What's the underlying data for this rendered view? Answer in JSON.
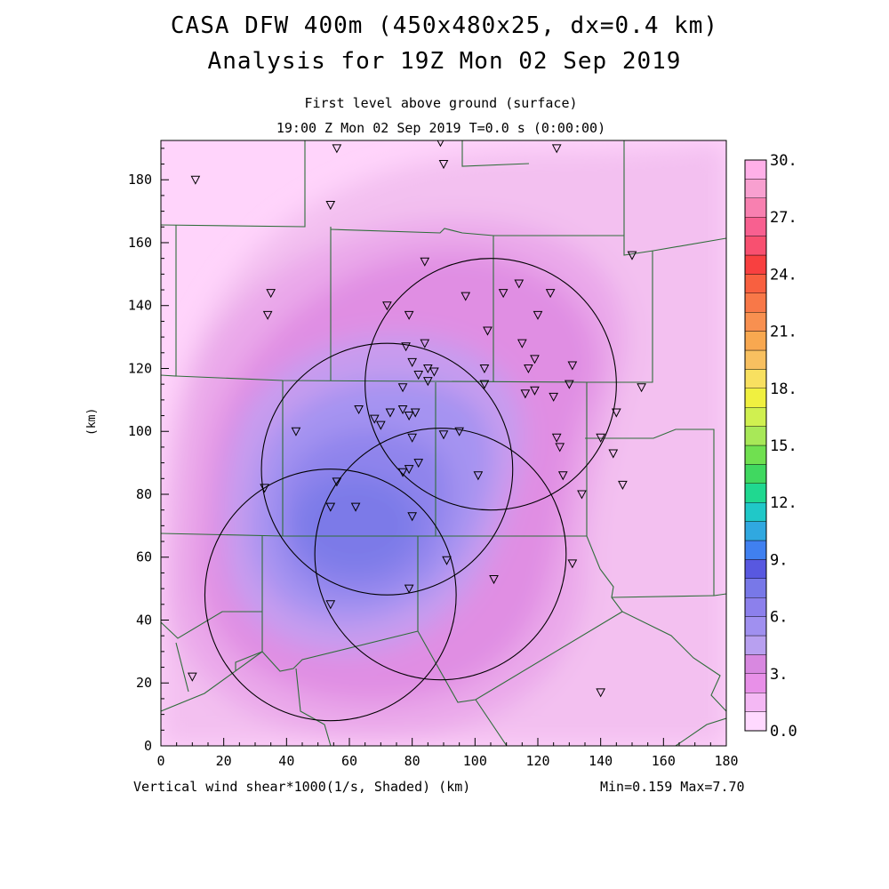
{
  "title_line1": "CASA DFW 400m (450x480x25, dx=0.4 km)",
  "title_line2": "Analysis for 19Z Mon 02 Sep 2019",
  "subtitle_line1": "First level above ground (surface)",
  "subtitle_line2": "19:00 Z Mon 02 Sep 2019    T=0.0 s (0:00:00)",
  "footer_left": "Vertical wind shear*1000(1/s, Shaded)  (km)",
  "footer_right": "Min=0.159 Max=7.70",
  "axis_unit_label": "(km)",
  "x_ticks": [
    "0",
    "20",
    "40",
    "60",
    "80",
    "100",
    "120",
    "140",
    "160",
    "180"
  ],
  "y_ticks": [
    "0",
    "20",
    "40",
    "60",
    "80",
    "100",
    "120",
    "140",
    "160",
    "180"
  ],
  "colorbar": {
    "labels": [
      "0.0",
      "3.",
      "6.",
      "9.",
      "12.",
      "15.",
      "18.",
      "21.",
      "24.",
      "27.",
      "30."
    ],
    "colors": [
      "#ffd9ff",
      "#f4b8f4",
      "#e890e8",
      "#d888e0",
      "#b8a0f0",
      "#a090f0",
      "#8c80ec",
      "#7878e8",
      "#5858e0",
      "#4080f0",
      "#30a8e0",
      "#20c8c8",
      "#20d890",
      "#40d860",
      "#70e050",
      "#a8e858",
      "#d0f050",
      "#f0f040",
      "#f8e060",
      "#f8c060",
      "#f8a850",
      "#f89050",
      "#f87848",
      "#f86040",
      "#f84040",
      "#f85070",
      "#f86090",
      "#f880b0",
      "#f8a0d0",
      "#ffb0e8"
    ]
  },
  "field": {
    "variable": "Vertical wind shear*1000",
    "units": "1/s",
    "min": 0.159,
    "max": 7.7
  },
  "radars": [
    {
      "name": "radar-ring-north",
      "center_km": [
        105,
        115
      ],
      "radius_km": 40
    },
    {
      "name": "radar-ring-center",
      "center_km": [
        72,
        88
      ],
      "radius_km": 40
    },
    {
      "name": "radar-ring-southeast",
      "center_km": [
        89,
        61
      ],
      "radius_km": 40
    },
    {
      "name": "radar-ring-southwest",
      "center_km": [
        54,
        48
      ],
      "radius_km": 40
    }
  ],
  "stations_km": [
    [
      11,
      180
    ],
    [
      56,
      190
    ],
    [
      89,
      192
    ],
    [
      90,
      185
    ],
    [
      54,
      172
    ],
    [
      126,
      190
    ],
    [
      150,
      156
    ],
    [
      35,
      144
    ],
    [
      34,
      137
    ],
    [
      72,
      140
    ],
    [
      79,
      137
    ],
    [
      84,
      154
    ],
    [
      97,
      143
    ],
    [
      104,
      132
    ],
    [
      109,
      144
    ],
    [
      114,
      147
    ],
    [
      120,
      137
    ],
    [
      124,
      144
    ],
    [
      78,
      127
    ],
    [
      84,
      128
    ],
    [
      115,
      128
    ],
    [
      80,
      122
    ],
    [
      85,
      120
    ],
    [
      87,
      119
    ],
    [
      82,
      118
    ],
    [
      85,
      116
    ],
    [
      103,
      120
    ],
    [
      103,
      115
    ],
    [
      117,
      120
    ],
    [
      119,
      123
    ],
    [
      131,
      121
    ],
    [
      116,
      112
    ],
    [
      119,
      113
    ],
    [
      125,
      111
    ],
    [
      130,
      115
    ],
    [
      153,
      114
    ],
    [
      145,
      106
    ],
    [
      63,
      107
    ],
    [
      68,
      104
    ],
    [
      70,
      102
    ],
    [
      73,
      106
    ],
    [
      77,
      107
    ],
    [
      77,
      114
    ],
    [
      79,
      105
    ],
    [
      81,
      106
    ],
    [
      43,
      100
    ],
    [
      90,
      99
    ],
    [
      80,
      98
    ],
    [
      95,
      100
    ],
    [
      126,
      98
    ],
    [
      127,
      95
    ],
    [
      140,
      98
    ],
    [
      144,
      93
    ],
    [
      33,
      82
    ],
    [
      56,
      84
    ],
    [
      77,
      87
    ],
    [
      79,
      88
    ],
    [
      82,
      90
    ],
    [
      101,
      86
    ],
    [
      128,
      86
    ],
    [
      134,
      80
    ],
    [
      147,
      83
    ],
    [
      54,
      76
    ],
    [
      62,
      76
    ],
    [
      80,
      73
    ],
    [
      91,
      59
    ],
    [
      131,
      58
    ],
    [
      106,
      53
    ],
    [
      79,
      50
    ],
    [
      54,
      45
    ],
    [
      10,
      22
    ],
    [
      140,
      17
    ]
  ]
}
